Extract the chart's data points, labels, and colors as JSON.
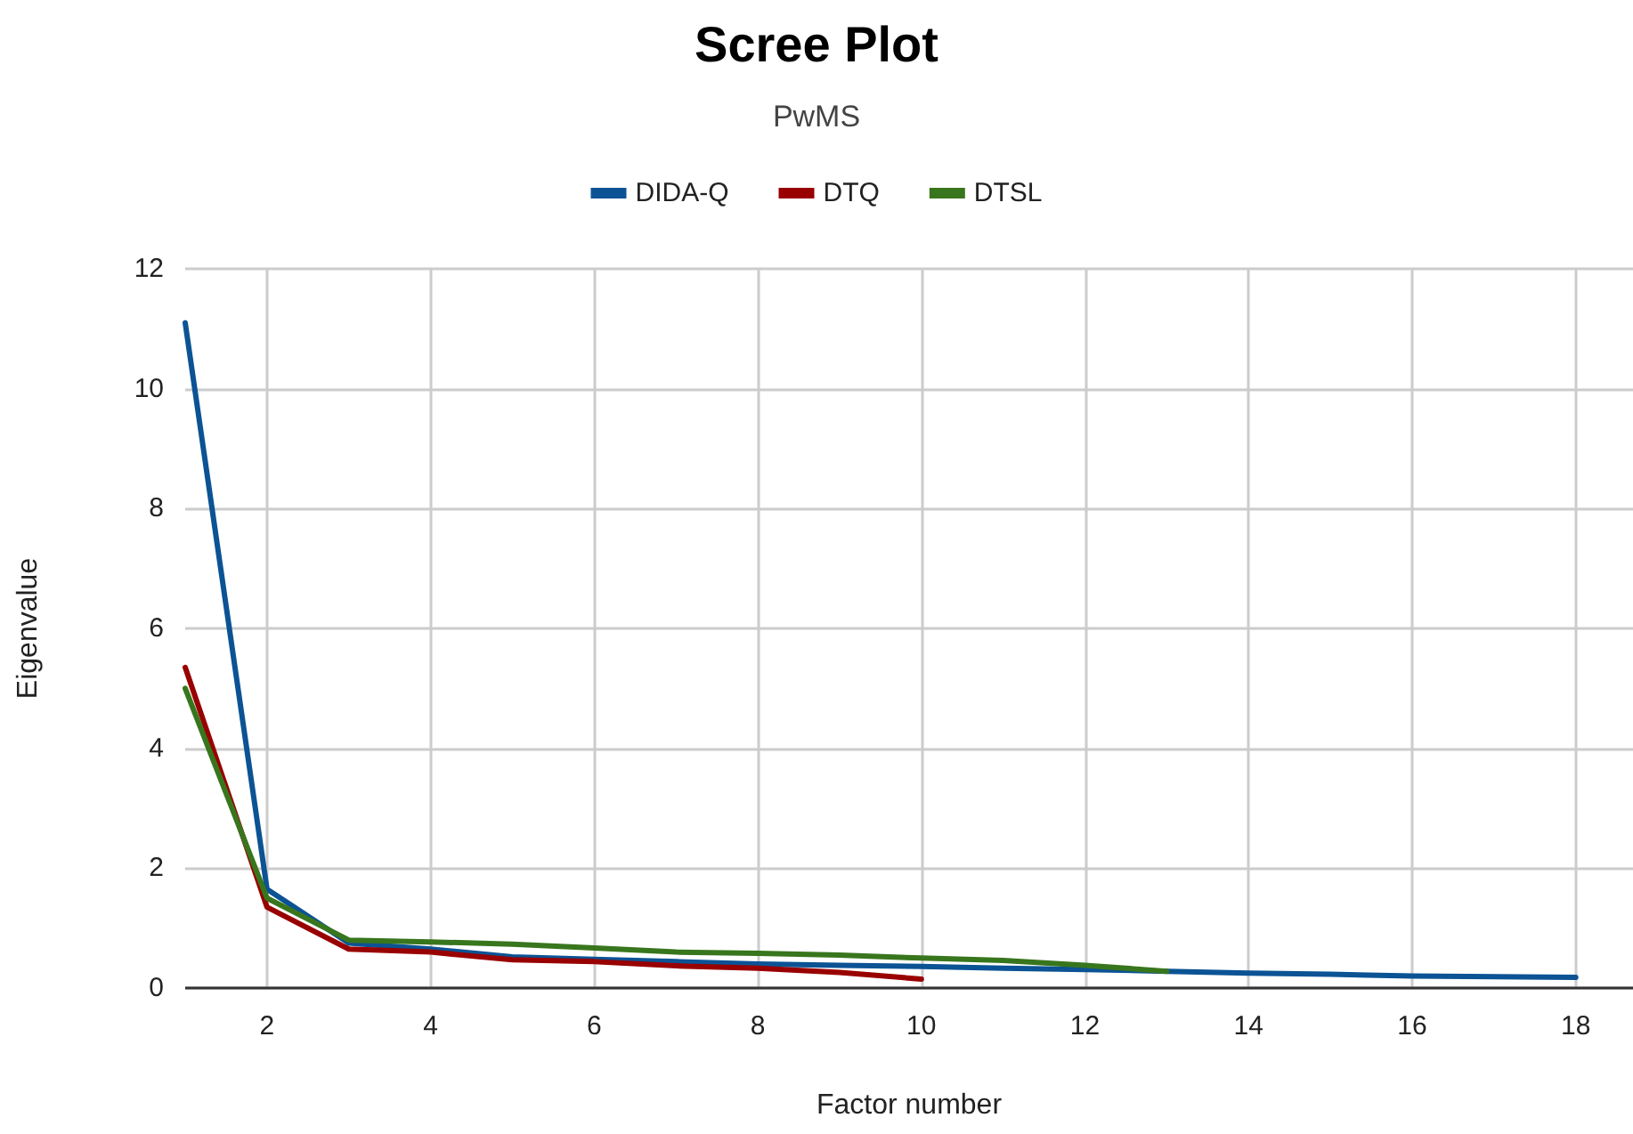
{
  "chart_data": {
    "type": "line",
    "title": "Scree Plot",
    "subtitle": "PwMS",
    "xlabel": "Factor number",
    "ylabel": "Eigenvalue",
    "xlim": [
      1,
      18.7
    ],
    "xticks": [
      2,
      4,
      6,
      8,
      10,
      12,
      14,
      16,
      18
    ],
    "ylim": [
      0,
      12
    ],
    "yticks": [
      0,
      2,
      4,
      6,
      8,
      10,
      12
    ],
    "grid": true,
    "legend": "top",
    "marker": "none",
    "line_style": "solid",
    "series": [
      {
        "name": "DIDA-Q",
        "color": "#0b5394",
        "x": [
          1,
          2,
          3,
          4,
          5,
          6,
          7,
          8,
          9,
          10,
          11,
          12,
          13,
          14,
          15,
          16,
          17,
          18
        ],
        "values": [
          11.1,
          1.65,
          0.75,
          0.65,
          0.52,
          0.48,
          0.44,
          0.4,
          0.38,
          0.36,
          0.33,
          0.31,
          0.28,
          0.25,
          0.23,
          0.2,
          0.19,
          0.18
        ]
      },
      {
        "name": "DTQ",
        "color": "#990000",
        "x": [
          1,
          2,
          3,
          4,
          5,
          6,
          7,
          8,
          9,
          10
        ],
        "values": [
          5.35,
          1.35,
          0.65,
          0.6,
          0.47,
          0.44,
          0.37,
          0.33,
          0.26,
          0.15
        ]
      },
      {
        "name": "DTSL",
        "color": "#38761d",
        "x": [
          1,
          2,
          3,
          4,
          5,
          6,
          7,
          8,
          9,
          10,
          11,
          12,
          13
        ],
        "values": [
          5.0,
          1.5,
          0.8,
          0.77,
          0.73,
          0.67,
          0.6,
          0.58,
          0.55,
          0.5,
          0.46,
          0.38,
          0.28
        ]
      }
    ]
  }
}
